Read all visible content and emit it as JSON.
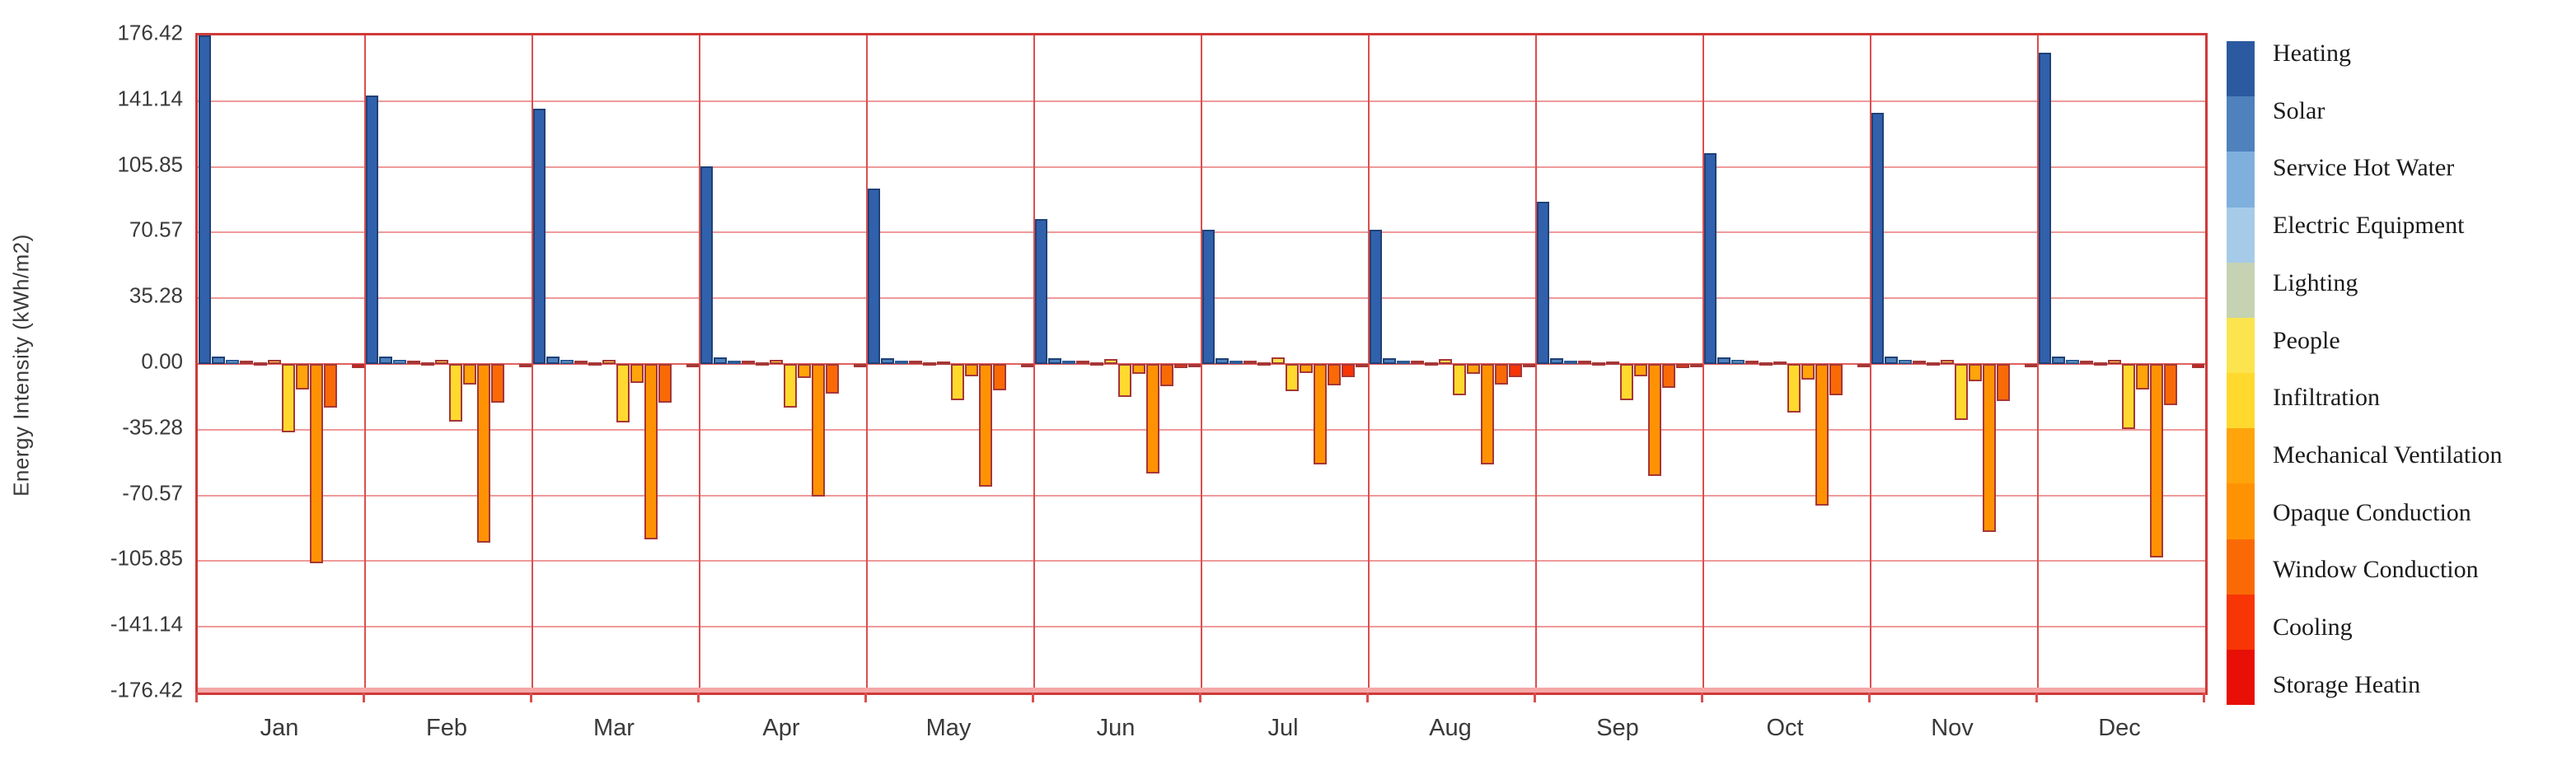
{
  "y_axis": {
    "label": "Energy Intensity (kWh/m2)",
    "ticks": [
      "176.42",
      "141.14",
      "105.85",
      "70.57",
      "35.28",
      "0.00",
      "-35.28",
      "-70.57",
      "-105.85",
      "-141.14",
      "-176.42"
    ]
  },
  "x_axis": {
    "months": [
      "Jan",
      "Feb",
      "Mar",
      "Apr",
      "May",
      "Jun",
      "Jul",
      "Aug",
      "Sep",
      "Oct",
      "Nov",
      "Dec"
    ]
  },
  "colors": {
    "plot_border": "#cf3a3a",
    "gridline": "#ef9a9a",
    "month_separator": "#d94f4f",
    "bottom_band": "#f5a8a8",
    "bar_outline_warm": "#a63737",
    "bar_outline_blue": "#1f4177",
    "axis_text": "#3a3a3a",
    "legend_text": "#1b1b1b"
  },
  "legend": {
    "items": [
      {
        "label": "Heating",
        "color": "#2c5aa0"
      },
      {
        "label": "Solar",
        "color": "#4f81bd"
      },
      {
        "label": "Service Hot Water",
        "color": "#7fafdc"
      },
      {
        "label": "Electric Equipment",
        "color": "#a5cbe8"
      },
      {
        "label": "Lighting",
        "color": "#c5d3b3"
      },
      {
        "label": "People",
        "color": "#fbe44d"
      },
      {
        "label": "Infiltration",
        "color": "#ffd92e"
      },
      {
        "label": "Mechanical Ventilation",
        "color": "#ffa40a"
      },
      {
        "label": "Opaque Conduction",
        "color": "#ff9203"
      },
      {
        "label": "Window Conduction",
        "color": "#f96a07"
      },
      {
        "label": "Cooling",
        "color": "#f83505"
      },
      {
        "label": "Storage Heatin",
        "color": "#e81006"
      }
    ]
  },
  "chart_data": {
    "type": "bar",
    "title": "",
    "xlabel": "",
    "ylabel": "Energy Intensity (kWh/m2)",
    "ylim": [
      -176.42,
      176.42
    ],
    "ytick_step": 35.28,
    "grid": true,
    "legend_position": "right",
    "categories": [
      "Jan",
      "Feb",
      "Mar",
      "Apr",
      "May",
      "Jun",
      "Jul",
      "Aug",
      "Sep",
      "Oct",
      "Nov",
      "Dec"
    ],
    "series": [
      {
        "name": "Heating",
        "color": "#3161ac",
        "outline": "#1f4177",
        "values": [
          176.4,
          144,
          137,
          106,
          94,
          78,
          72,
          72,
          87,
          113,
          135,
          167
        ]
      },
      {
        "name": "Solar",
        "color": "#4f81bd",
        "outline": "#1f4177",
        "values": [
          4,
          4,
          4,
          3.5,
          3,
          3,
          3,
          3,
          3,
          3.5,
          4,
          4
        ]
      },
      {
        "name": "Service Hot Water",
        "color": "#7fafdc",
        "outline": "#2c5c94",
        "values": [
          2,
          2,
          2,
          1.8,
          1.8,
          1.8,
          1.8,
          1.8,
          1.8,
          2,
          2,
          2
        ]
      },
      {
        "name": "Electric Equipment",
        "color": "#a5cbe8",
        "outline": "#a63737",
        "values": [
          1.8,
          1.8,
          1.8,
          1.8,
          1.8,
          1.8,
          1.8,
          1.8,
          1.8,
          1.8,
          1.8,
          1.8
        ]
      },
      {
        "name": "Lighting",
        "color": "#c5d3b3",
        "outline": "#a63737",
        "values": [
          1,
          1,
          1,
          0.8,
          0.8,
          0.8,
          0.8,
          0.8,
          0.8,
          1,
          1,
          1
        ]
      },
      {
        "name": "People",
        "color": "#fbe44d",
        "outline": "#a63737",
        "values": [
          2,
          2,
          2,
          2,
          1.5,
          2.5,
          3.5,
          2.5,
          1.5,
          1.5,
          2,
          2
        ]
      },
      {
        "name": "Infiltration",
        "color": "#ffd92e",
        "outline": "#a63737",
        "values": [
          -36.5,
          -31,
          -31.5,
          -23.5,
          -19.5,
          -17.5,
          -14.5,
          -17,
          -19.5,
          -26,
          -30,
          -35
        ]
      },
      {
        "name": "Mechanical Ventilation",
        "color": "#ffa40a",
        "outline": "#a63737",
        "values": [
          -13.5,
          -11,
          -10,
          -7.5,
          -6.5,
          -5.5,
          -5,
          -5.5,
          -6.5,
          -8.5,
          -9.5,
          -13.5
        ]
      },
      {
        "name": "Opaque Conduction",
        "color": "#ff9203",
        "outline": "#a63737",
        "values": [
          -107,
          -96,
          -94,
          -71,
          -66,
          -59,
          -54,
          -54,
          -60,
          -76,
          -90,
          -104
        ]
      },
      {
        "name": "Window Conduction",
        "color": "#f96a07",
        "outline": "#a63737",
        "values": [
          -23.5,
          -21,
          -21,
          -16,
          -14,
          -12,
          -11.5,
          -11,
          -13,
          -17,
          -20,
          -22
        ]
      },
      {
        "name": "Cooling",
        "color": "#f83505",
        "outline": "#a63737",
        "values": [
          0,
          0,
          0,
          0,
          0,
          -2,
          -7,
          -7,
          -2,
          0,
          0,
          0
        ]
      },
      {
        "name": "Storage Heatin",
        "color": "#e81006",
        "outline": "#a63737",
        "values": [
          -2,
          -1.5,
          -1.5,
          -1.5,
          -1.5,
          -1.5,
          -1.5,
          -1.5,
          -1.5,
          -1.5,
          -1.5,
          -2
        ]
      }
    ]
  }
}
